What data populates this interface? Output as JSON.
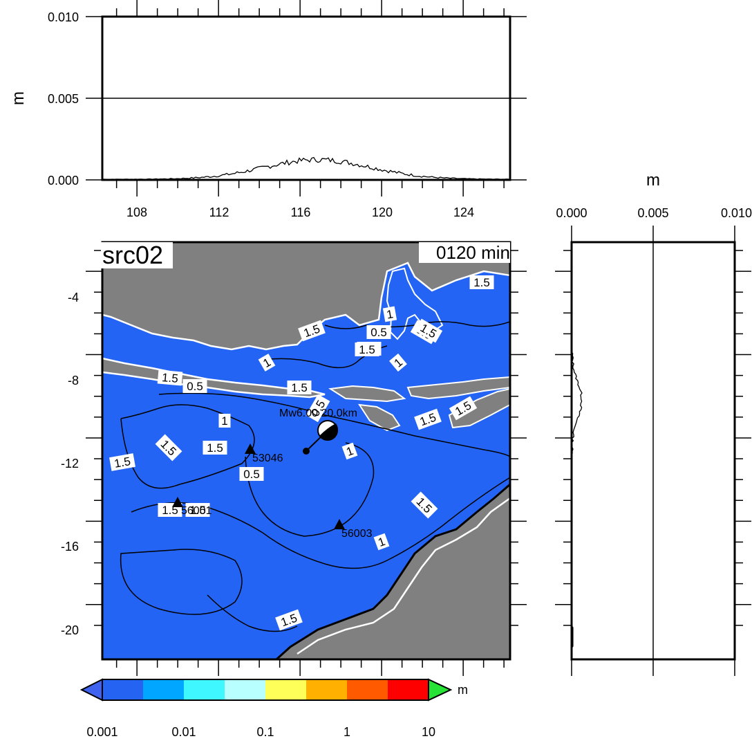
{
  "panel_title": "src02",
  "time_label": "0120 min",
  "unit": "m",
  "top_profile": {
    "ylabel": "m",
    "y_ticks": [
      "0.000",
      "0.005",
      "0.010"
    ],
    "x_ticks": [
      "108",
      "112",
      "116",
      "120",
      "124"
    ]
  },
  "right_profile": {
    "xlabel": "m",
    "x_ticks": [
      "0.000",
      "0.005",
      "0.010"
    ]
  },
  "map": {
    "lat_ticks": [
      "-4",
      "-8",
      "-12",
      "-16",
      "-20"
    ],
    "event_label": "Mw6.00 20.0km",
    "stations": [
      {
        "id": "53046"
      },
      {
        "id": "56001"
      },
      {
        "id": "56003"
      }
    ],
    "contour_labels": [
      "1.5",
      "1.5",
      "1.5",
      "1.5",
      "0.5",
      "1",
      "1",
      "0.5",
      "1",
      "1.5",
      "1.5",
      "0.5",
      "1.5",
      "1",
      "0.5",
      "1",
      "1.5",
      "1.5",
      "1.5",
      "1.5",
      "1.5",
      "1",
      "1.5",
      "1.5",
      "1.5",
      "0.5",
      "1.5"
    ]
  },
  "colorbar": {
    "tick_labels": [
      "0.001",
      "0.01",
      "0.1",
      "1",
      "10"
    ],
    "unit": "m",
    "colors": [
      "#2563f2",
      "#00a6ff",
      "#3ff7ff",
      "#b8ffff",
      "#ffff5a",
      "#ffb000",
      "#ff5a00",
      "#ff0000"
    ],
    "under_color": "#3f62ef",
    "over_color": "#27e336"
  },
  "colors": {
    "ocean": "#2464f4",
    "land": "#808080",
    "coast_outline": "#ffffff"
  }
}
